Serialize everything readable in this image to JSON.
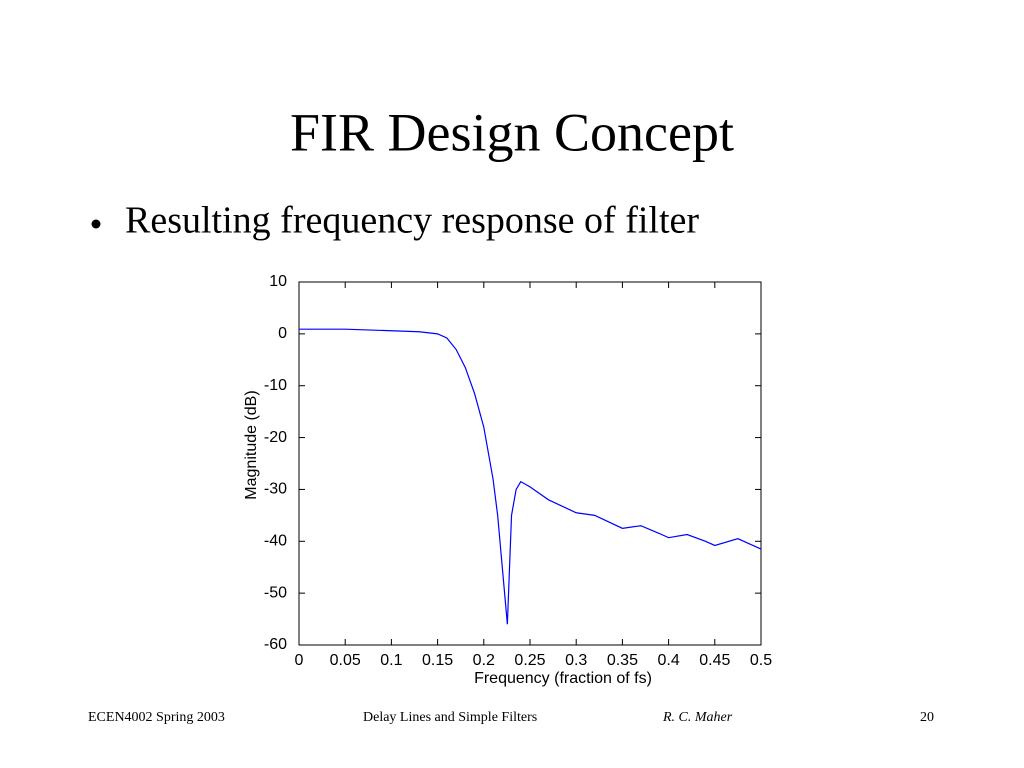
{
  "slide": {
    "title": "FIR Design Concept",
    "bullet": "Resulting frequency response of filter",
    "footer": {
      "course": "ECEN4002 Spring 2003",
      "topic": "Delay Lines and Simple Filters",
      "author": "R. C. Maher",
      "page": "20"
    }
  },
  "chart_data": {
    "type": "line",
    "xlabel": "Frequency (fraction of fs)",
    "ylabel": "Magnitude (dB)",
    "x": [
      0,
      0.05,
      0.1,
      0.13,
      0.15,
      0.16,
      0.17,
      0.18,
      0.19,
      0.2,
      0.21,
      0.215,
      0.22,
      0.2255,
      0.23,
      0.235,
      0.24,
      0.25,
      0.27,
      0.3,
      0.32,
      0.35,
      0.37,
      0.39,
      0.4,
      0.42,
      0.44,
      0.45,
      0.475,
      0.5
    ],
    "values": [
      0.9,
      0.9,
      0.6,
      0.4,
      0,
      -0.8,
      -3,
      -6.5,
      -11.5,
      -18,
      -28,
      -35,
      -45,
      -56,
      -35,
      -30,
      -28.5,
      -29.5,
      -32,
      -34.5,
      -35,
      -37.5,
      -37,
      -38.5,
      -39.3,
      -38.7,
      -40,
      -40.8,
      -39.5,
      -41.5
    ],
    "color": "#0000ff",
    "xlim": [
      0,
      0.5
    ],
    "xticks": [
      0,
      0.05,
      0.1,
      0.15,
      0.2,
      0.25,
      0.3,
      0.35,
      0.4,
      0.45,
      0.5
    ],
    "ylim": [
      -60,
      10
    ],
    "yticks": [
      -60,
      -50,
      -40,
      -30,
      -20,
      -10,
      0,
      10
    ],
    "grid": false
  }
}
